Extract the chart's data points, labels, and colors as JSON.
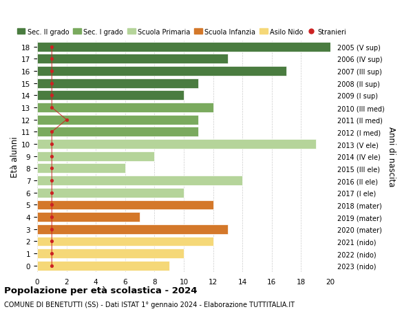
{
  "ages": [
    18,
    17,
    16,
    15,
    14,
    13,
    12,
    11,
    10,
    9,
    8,
    7,
    6,
    5,
    4,
    3,
    2,
    1,
    0
  ],
  "values": [
    20,
    13,
    17,
    11,
    10,
    12,
    11,
    11,
    19,
    8,
    6,
    14,
    10,
    12,
    7,
    13,
    12,
    10,
    9
  ],
  "right_labels": [
    "2005 (V sup)",
    "2006 (IV sup)",
    "2007 (III sup)",
    "2008 (II sup)",
    "2009 (I sup)",
    "2010 (III med)",
    "2011 (II med)",
    "2012 (I med)",
    "2013 (V ele)",
    "2014 (IV ele)",
    "2015 (III ele)",
    "2016 (II ele)",
    "2017 (I ele)",
    "2018 (mater)",
    "2019 (mater)",
    "2020 (mater)",
    "2021 (nido)",
    "2022 (nido)",
    "2023 (nido)"
  ],
  "bar_colors": [
    "#4a7c40",
    "#4a7c40",
    "#4a7c40",
    "#4a7c40",
    "#4a7c40",
    "#7aaa5e",
    "#7aaa5e",
    "#7aaa5e",
    "#b5d49a",
    "#b5d49a",
    "#b5d49a",
    "#b5d49a",
    "#b5d49a",
    "#d4782a",
    "#d4782a",
    "#d4782a",
    "#f5d878",
    "#f5d878",
    "#f5d878"
  ],
  "stranieri_x": [
    1,
    1,
    1,
    1,
    1,
    1,
    2,
    1,
    1,
    1,
    1,
    1,
    1,
    1,
    1,
    1,
    1,
    1,
    1
  ],
  "legend_labels": [
    "Sec. II grado",
    "Sec. I grado",
    "Scuola Primaria",
    "Scuola Infanzia",
    "Asilo Nido",
    "Stranieri"
  ],
  "legend_colors": [
    "#4a7c40",
    "#7aaa5e",
    "#b5d49a",
    "#d4782a",
    "#f5d878",
    "#cc2222"
  ],
  "title": "Popolazione per età scolastica - 2024",
  "subtitle": "COMUNE DI BENETUTTI (SS) - Dati ISTAT 1° gennaio 2024 - Elaborazione TUTTITALIA.IT",
  "ylabel_left": "Età alunni",
  "ylabel_right": "Anni di nascita",
  "xlim": [
    0,
    20
  ],
  "xticks": [
    0,
    2,
    4,
    6,
    8,
    10,
    12,
    14,
    16,
    18,
    20
  ],
  "bg_color": "#ffffff",
  "grid_color": "#cccccc"
}
